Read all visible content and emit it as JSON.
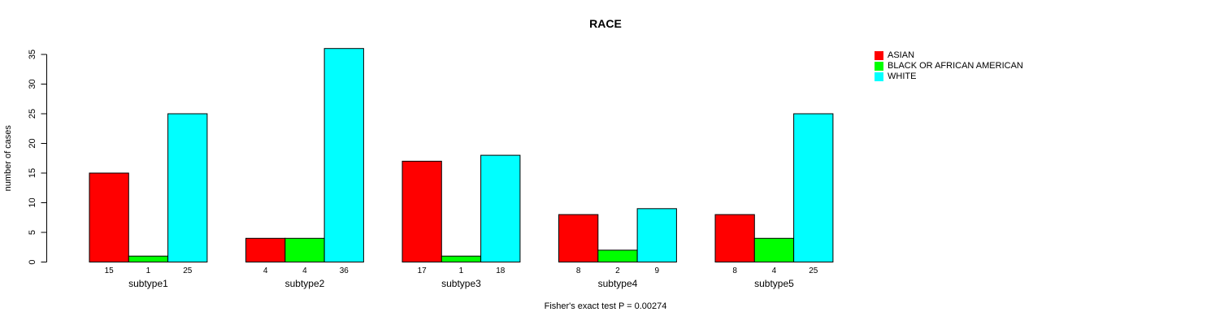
{
  "chart_data": {
    "type": "bar",
    "grouped": true,
    "title": "RACE",
    "xlabel": "",
    "ylabel": "number of cases",
    "categories": [
      "subtype1",
      "subtype2",
      "subtype3",
      "subtype4",
      "subtype5"
    ],
    "series": [
      {
        "name": "ASIAN",
        "color": "#ff0000",
        "values": [
          15,
          4,
          17,
          8,
          8
        ]
      },
      {
        "name": "BLACK OR AFRICAN AMERICAN",
        "color": "#00ff00",
        "values": [
          1,
          4,
          1,
          2,
          4
        ]
      },
      {
        "name": "WHITE",
        "color": "#00ffff",
        "values": [
          25,
          36,
          18,
          9,
          25
        ]
      }
    ],
    "bar_value_labels_shown": true,
    "ylim": [
      0,
      36
    ],
    "yticks": [
      0,
      5,
      10,
      15,
      20,
      25,
      30,
      35
    ],
    "grid": false,
    "legend_position": "right",
    "bar_border_color": "#000000",
    "annotation": "Fisher's exact test P = 0.00274"
  }
}
